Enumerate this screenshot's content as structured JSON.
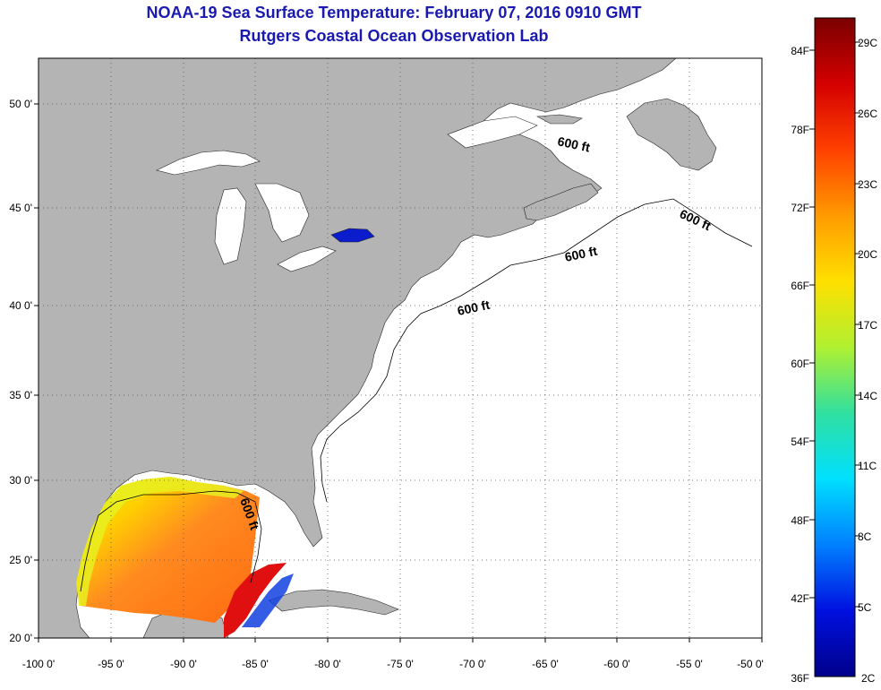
{
  "header": {
    "title": "NOAA-19 Sea Surface Temperature:  February 07, 2016 0910 GMT",
    "subtitle": "Rutgers Coastal Ocean Observation Lab"
  },
  "map": {
    "lon_range": [
      -100,
      -50
    ],
    "lat_range": [
      20,
      52.5
    ],
    "lon_ticks": [
      "-100 0'",
      "-95 0'",
      "-90 0'",
      "-85 0'",
      "-80 0'",
      "-75 0'",
      "-70 0'",
      "-65 0'",
      "-60 0'",
      "-55 0'",
      "-50 0'"
    ],
    "lat_ticks": [
      "50 0'",
      "45 0'",
      "40 0'",
      "35 0'",
      "30 0'",
      "25 0'",
      "20 0'"
    ],
    "grid": "dotted",
    "contour_labels": [
      "600 ft",
      "600 ft",
      "600 ft",
      "600 ft",
      "600 ft"
    ],
    "land_color": "#b4b4b4",
    "ocean_color": "#ffffff"
  },
  "colorbar": {
    "fahrenheit_labels": [
      "84F",
      "78F",
      "72F",
      "66F",
      "60F",
      "54F",
      "48F",
      "42F",
      "36F"
    ],
    "celsius_labels": [
      "29C",
      "26C",
      "23C",
      "20C",
      "17C",
      "14C",
      "11C",
      "8C",
      "5C",
      "2C"
    ],
    "colors": [
      "#7a0000",
      "#d40000",
      "#ff4000",
      "#ff9a00",
      "#ffe000",
      "#b0f030",
      "#30e0a0",
      "#00e0ff",
      "#0080ff",
      "#0010e0",
      "#00008a"
    ]
  }
}
